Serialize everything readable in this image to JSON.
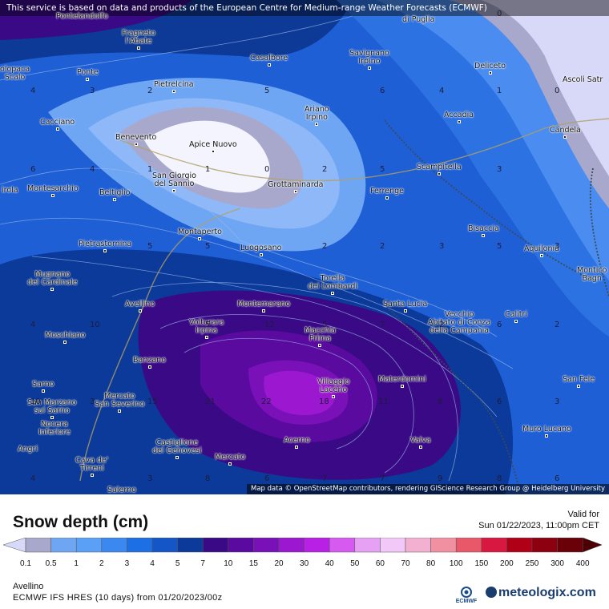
{
  "banner": "This service is based on data and products of the European Centre for Medium-range Weather Forecasts (ECMWF)",
  "attribution": "Map data © OpenStreetMap contributors, rendering GIScience Research Group @ Heidelberg University",
  "legend": {
    "title": "Snow depth (cm)",
    "valid_label": "Valid for",
    "valid_time": "Sun 01/22/2023, 11:00pm CET",
    "ticks": [
      "0.1",
      "0.5",
      "1",
      "2",
      "3",
      "4",
      "5",
      "7",
      "10",
      "15",
      "20",
      "30",
      "40",
      "50",
      "60",
      "70",
      "80",
      "100",
      "150",
      "200",
      "250",
      "300",
      "400"
    ],
    "colors": [
      "#d8d8f8",
      "#a8a8cc",
      "#6fa6f4",
      "#5aa0f6",
      "#3a88f0",
      "#1c6fe4",
      "#1456c8",
      "#0c3a9a",
      "#3a0a86",
      "#5a0a9e",
      "#7a10b8",
      "#9c18d0",
      "#b820e6",
      "#d65af0",
      "#e6a0f4",
      "#f2c8f8",
      "#f4b0d0",
      "#f090a0",
      "#e85868",
      "#d81840",
      "#b00018",
      "#8c0010",
      "#6a0008",
      "#4a0004"
    ],
    "region": "Avellino",
    "model": "ECMWF IFS HRES (10 days) from 01/20/2023/00z",
    "ecmwf_logo": "ECMWF",
    "brand": "meteologix.com"
  },
  "places": [
    {
      "name": "Pontelandolfo",
      "lines": [
        "Pontelandolfo"
      ]
    },
    {
      "name": "Fragneto l'Abate",
      "lines": [
        "Fragneto",
        "l'Abate"
      ]
    },
    {
      "name": "Casalbore",
      "lines": [
        "Casalbore"
      ]
    },
    {
      "name": "Savignano Irpino",
      "lines": [
        "Savignano",
        "Irpino"
      ]
    },
    {
      "name": "Deliceto",
      "lines": [
        "Deliceto"
      ]
    },
    {
      "name": "Ascoli Satriano",
      "lines": [
        "Ascoli Satr"
      ]
    },
    {
      "name": "Telese",
      "lines": [
        "olopaca",
        "Scalo"
      ]
    },
    {
      "name": "Ponte",
      "lines": [
        "Ponte"
      ]
    },
    {
      "name": "Pietrelcina",
      "lines": [
        "Pietrelcina"
      ]
    },
    {
      "name": "Ariano Irpino",
      "lines": [
        "Ariano",
        "Irpino"
      ]
    },
    {
      "name": "Accadia",
      "lines": [
        "Accadia"
      ]
    },
    {
      "name": "Cacciano",
      "lines": [
        "Cacciano"
      ]
    },
    {
      "name": "Benevento",
      "lines": [
        "Benevento"
      ]
    },
    {
      "name": "Apice Nuovo",
      "lines": [
        "Apice Nuovo"
      ]
    },
    {
      "name": "Candela",
      "lines": [
        "Candela"
      ]
    },
    {
      "name": "San Giorgio del Sannio",
      "lines": [
        "San Giorgio",
        "del Sannio"
      ]
    },
    {
      "name": "Scampitella",
      "lines": [
        "Scampitella"
      ]
    },
    {
      "name": "Airola",
      "lines": [
        "irola"
      ]
    },
    {
      "name": "Montesarchio",
      "lines": [
        "Montesarchio"
      ]
    },
    {
      "name": "Beltiglio",
      "lines": [
        "Beltiglio"
      ]
    },
    {
      "name": "Grottaminarda",
      "lines": [
        "Grottaminarda"
      ]
    },
    {
      "name": "Ferrenge",
      "lines": [
        "Ferrenge"
      ]
    },
    {
      "name": "Bisaccia",
      "lines": [
        "Bisaccia"
      ]
    },
    {
      "name": "Montaperto",
      "lines": [
        "Montaperto"
      ]
    },
    {
      "name": "Pietrastornina",
      "lines": [
        "Pietrastornina"
      ]
    },
    {
      "name": "Luogosano",
      "lines": [
        "Luogosano"
      ]
    },
    {
      "name": "Aquilonia",
      "lines": [
        "Aquilonia"
      ]
    },
    {
      "name": "Mugnano del Cardinale",
      "lines": [
        "Mugnano",
        "del Cardinale"
      ]
    },
    {
      "name": "Torella dei Lombardi",
      "lines": [
        "Torella",
        "dei Lombardi"
      ]
    },
    {
      "name": "Monticchio Bagni",
      "lines": [
        "Montico",
        "Bagn"
      ]
    },
    {
      "name": "Avellino",
      "lines": [
        "Avellino"
      ]
    },
    {
      "name": "Montemarano",
      "lines": [
        "Montemarano"
      ]
    },
    {
      "name": "Santa Lucia",
      "lines": [
        "Santa Lucia"
      ]
    },
    {
      "name": "Calitri",
      "lines": [
        "Calitri"
      ]
    },
    {
      "name": "Vecchio Abitato di Conza della Campania",
      "lines": [
        "Vecchio",
        "Abitato di Conza",
        "della Campania"
      ]
    },
    {
      "name": "Volturara Irpina",
      "lines": [
        "Volturara",
        "Irpina"
      ]
    },
    {
      "name": "Macchia Prima",
      "lines": [
        "Macchia",
        "Prima"
      ]
    },
    {
      "name": "Moschiano",
      "lines": [
        "Moschiano"
      ]
    },
    {
      "name": "Banzano",
      "lines": [
        "Banzano"
      ]
    },
    {
      "name": "Materdomini",
      "lines": [
        "Materdomini"
      ]
    },
    {
      "name": "San Fele",
      "lines": [
        "San Fele"
      ]
    },
    {
      "name": "Sarno",
      "lines": [
        "Sarno"
      ]
    },
    {
      "name": "Villaggio Laceno",
      "lines": [
        "Villaggio",
        "Laceno"
      ]
    },
    {
      "name": "San Marzano sul Sarno",
      "lines": [
        "San Marzano",
        "sul Sarno"
      ]
    },
    {
      "name": "Mercato San Severino",
      "lines": [
        "Mercato",
        "San Severino"
      ]
    },
    {
      "name": "Nocera Inferiore",
      "lines": [
        "Nocera",
        "Inferiore"
      ]
    },
    {
      "name": "Muro Lucano",
      "lines": [
        "Muro Lucano"
      ]
    },
    {
      "name": "Valva",
      "lines": [
        "Valva"
      ]
    },
    {
      "name": "Acerno",
      "lines": [
        "Acerno"
      ]
    },
    {
      "name": "Castiglione del Genovesi",
      "lines": [
        "Castiglione",
        "del Genovesi"
      ]
    },
    {
      "name": "Angri",
      "lines": [
        "Angri"
      ]
    },
    {
      "name": "Mercato",
      "lines": [
        "Mercato"
      ]
    },
    {
      "name": "Cava de' Tirreni",
      "lines": [
        "Cava de'",
        "Tirreni"
      ]
    },
    {
      "name": "Salerno",
      "lines": [
        "Salerno"
      ]
    },
    {
      "name": "Greci di Puglia",
      "lines": [
        "di Puglia"
      ]
    }
  ],
  "contour_labels": [
    "0",
    "0",
    "4",
    "3",
    "2",
    "5",
    "6",
    "4",
    "1",
    "0",
    "6",
    "4",
    "1",
    "0",
    "2",
    "5",
    "3",
    "2",
    "5",
    "2",
    "5",
    "3",
    "5",
    "4",
    "7",
    "2",
    "3",
    "2",
    "5",
    "6",
    "10",
    "12",
    "4",
    "5",
    "2",
    "6",
    "10",
    "15",
    "21",
    "22",
    "18",
    "11",
    "8",
    "6",
    "3",
    "4",
    "8",
    "3",
    "3",
    "6",
    "9",
    "8",
    "6",
    "7",
    "1"
  ]
}
